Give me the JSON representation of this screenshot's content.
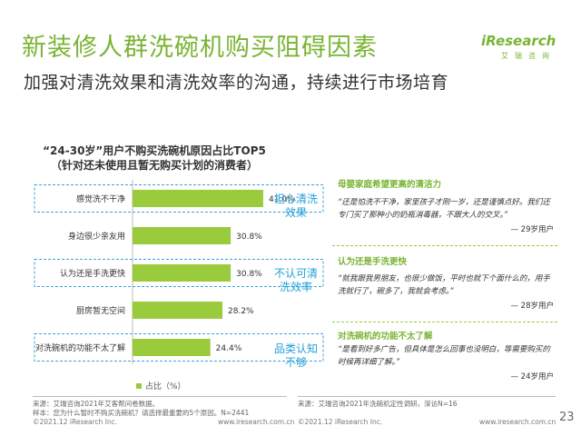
{
  "header": {
    "title": "新装修人群洗碗机购买阻碍因素",
    "subtitle": "加强对清洗效果和清洗效率的沟通，持续进行市场培育"
  },
  "brand": {
    "logo": "iResearch",
    "logo_sub": "艾瑞咨询",
    "accent": "#7ab434"
  },
  "chart_data": {
    "type": "bar",
    "orientation": "horizontal",
    "title_line1": "“24-30岁”用户不购买洗碗机原因占比TOP5",
    "title_line2": "（针对还未使用且暂无购买计划的消费者）",
    "categories": [
      "感觉洗不干净",
      "身边很少亲友用",
      "认为还是手洗更快",
      "厨房暂无空间",
      "对洗碗机的功能不太了解"
    ],
    "values": [
      41.0,
      30.8,
      30.8,
      28.2,
      24.4
    ],
    "value_labels": [
      "41.0%",
      "30.8%",
      "30.8%",
      "28.2%",
      "24.4%"
    ],
    "highlighted": [
      true,
      false,
      true,
      false,
      true
    ],
    "legend": "占比（%）",
    "bar_color": "#9acb3c",
    "xlim": [
      0,
      45
    ]
  },
  "notes": [
    "担心清洗效果",
    "不认可清洗效率",
    "品类认知不够"
  ],
  "quotes": [
    {
      "title": "母婴家庭希望更高的清洁力",
      "text": "“还是怕洗不干净，家里孩子才刚一岁，还是谨慎点好。我们还专门买了那种小的奶瓶消毒器，不跟大人的交叉。”",
      "author": "— 29岁用户"
    },
    {
      "title": "认为还是手洗更快",
      "text": "“就我跟我男朋友，也很少做饭，平时也就下个面什么的，用手洗就行了，碗多了，我就会考虑。”",
      "author": "— 28岁用户"
    },
    {
      "title": "对洗碗机的功能不太了解",
      "text": "“是看到好多广告，但具体是怎么回事也没明白，等需要购买的时候再详细了解。”",
      "author": "— 24岁用户"
    }
  ],
  "sources": {
    "left_line1": "来源：艾瑞咨询2021年艾客帮问卷数据。",
    "left_line2": "样本：您为什么暂时不购买洗碗机？请选择最重要的5个原因。N=2441",
    "right": "来源：艾瑞咨询2021年洗碗机定性调研，深访N=16"
  },
  "footer": {
    "copyright_left": "©2021.12 iResearch Inc.",
    "url_left": "www.iresearch.com.cn",
    "copyright_right": "©2021.12 iResearch Inc.",
    "url_right": "www.iresearch.com.cn",
    "page_number": "23"
  }
}
